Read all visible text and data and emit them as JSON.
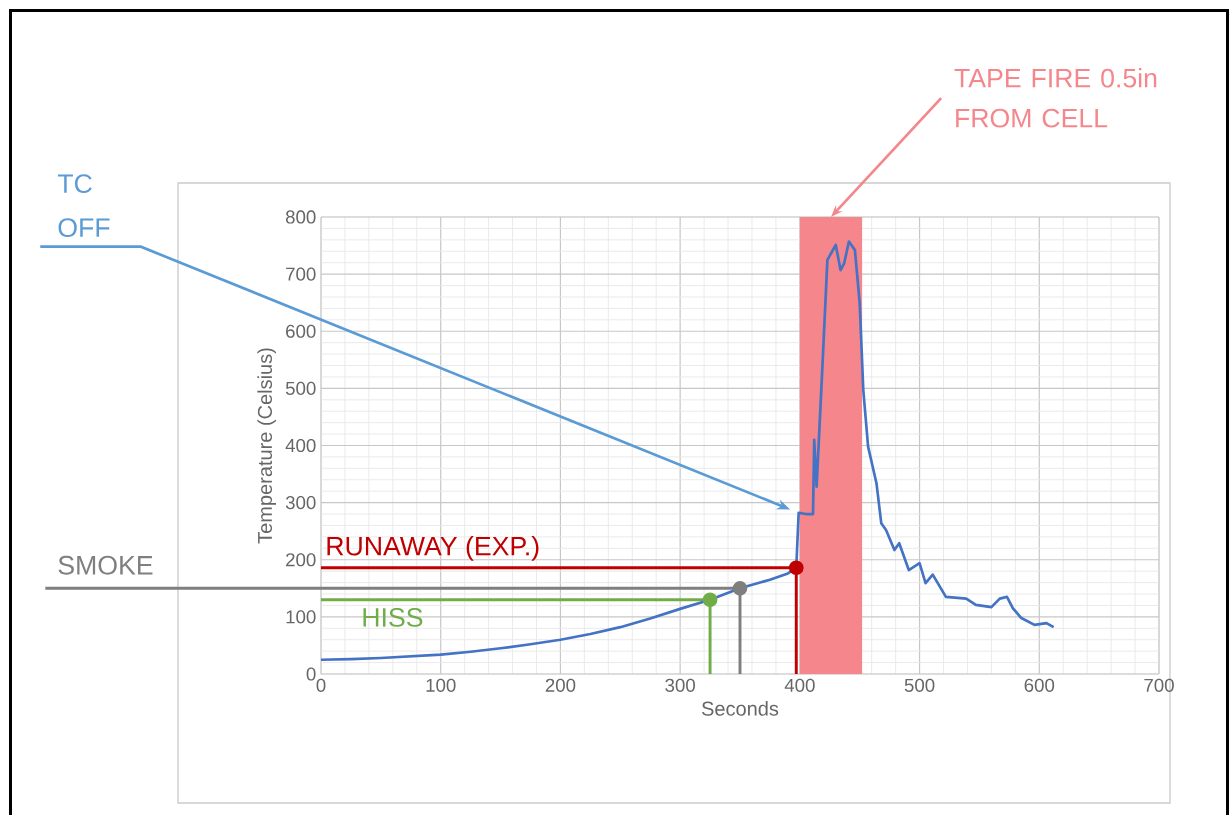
{
  "chart_data": {
    "type": "line",
    "xlabel": "Seconds",
    "ylabel": "Temperature (Celsius)",
    "series": [
      {
        "color": "#4472c4",
        "x": [
          0,
          25,
          50,
          75,
          100,
          125,
          150,
          175,
          200,
          225,
          250,
          275,
          300,
          325,
          350,
          375,
          390,
          397,
          399,
          405,
          411,
          412,
          414,
          419,
          423,
          430,
          434,
          437,
          441,
          446,
          450,
          453,
          457,
          464,
          468,
          472,
          479,
          483,
          491,
          500,
          505,
          511,
          522,
          539,
          547,
          560,
          567,
          573,
          578,
          585,
          596,
          606,
          612
        ],
        "values": [
          25,
          26,
          28,
          31,
          34,
          39,
          45,
          52,
          60,
          70,
          82,
          97,
          114,
          130,
          150,
          165,
          176,
          186,
          282,
          280,
          280,
          410,
          328,
          545,
          725,
          751,
          707,
          719,
          757,
          742,
          649,
          497,
          398,
          334,
          264,
          252,
          217,
          229,
          182,
          194,
          159,
          174,
          135,
          132,
          121,
          117,
          132,
          135,
          115,
          98,
          86,
          89,
          82
        ]
      },
      {
        "type": "scatter",
        "color": "#c00000",
        "x": [
          397
        ],
        "values": [
          186
        ]
      },
      {
        "type": "scatter",
        "color": "#7f7f7f",
        "x": [
          350
        ],
        "values": [
          150
        ]
      },
      {
        "type": "scatter",
        "color": "#70ad47",
        "x": [
          325
        ],
        "values": [
          130
        ]
      }
    ],
    "xlim": [
      0,
      700
    ],
    "xticks": [
      0,
      100,
      200,
      300,
      400,
      500,
      600,
      700
    ],
    "ylim": [
      0,
      800
    ],
    "yticks": [
      0,
      100,
      200,
      300,
      400,
      500,
      600,
      700,
      800
    ],
    "grid": true,
    "ref_lines": [
      {
        "axis": "y",
        "value": 186,
        "label": "RUNAWAY (EXP.)",
        "color": "#c00000"
      },
      {
        "axis": "x",
        "value": 397,
        "color": "#c00000"
      },
      {
        "axis": "y",
        "value": 150,
        "label": "SMOKE",
        "color": "#7f7f7f"
      },
      {
        "axis": "x",
        "value": 350,
        "color": "#7f7f7f"
      },
      {
        "axis": "y",
        "value": 130,
        "label": "HISS",
        "color": "#70ad47"
      },
      {
        "axis": "x",
        "value": 325,
        "color": "#70ad47"
      }
    ],
    "bands": [
      {
        "axis": "x",
        "from": 400,
        "to": 452,
        "label": "TAPE FIRE 0.5in FROM CELL",
        "color": "#f4868c"
      }
    ],
    "annotations": [
      "TC OFF"
    ]
  }
}
